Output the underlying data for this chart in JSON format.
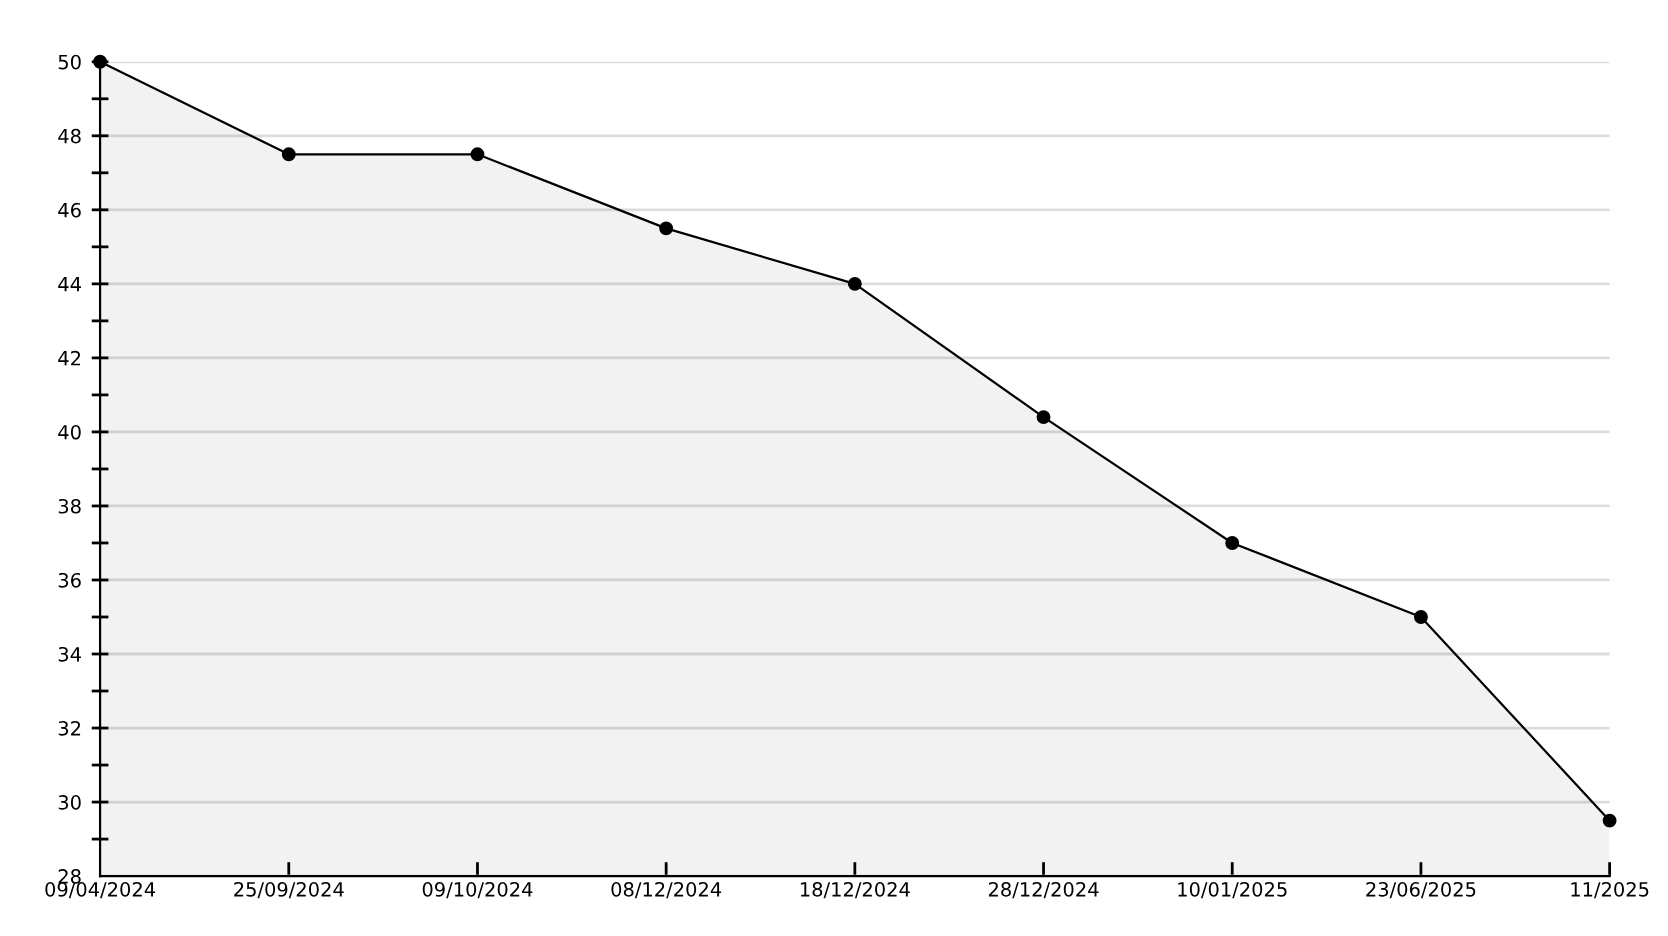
{
  "chart_data": {
    "type": "area",
    "categories": [
      "09/04/2024",
      "25/09/2024",
      "09/10/2024",
      "08/12/2024",
      "18/12/2024",
      "28/12/2024",
      "10/01/2025",
      "23/06/2025",
      "11/2025"
    ],
    "series": [
      {
        "color": "#000000",
        "values": [
          50,
          47.5,
          47.5,
          45.5,
          44.0,
          40.4,
          37.0,
          35.0,
          29.5
        ]
      }
    ],
    "ylim": [
      28,
      50
    ],
    "yticks": [
      28,
      {
        "value": 29,
        "label": null
      },
      30,
      {
        "value": 31,
        "label": null
      },
      32,
      {
        "value": 33,
        "label": null
      },
      34,
      {
        "value": 35,
        "label": null
      },
      36,
      {
        "value": 37,
        "label": null
      },
      38,
      {
        "value": 39,
        "label": null
      },
      40,
      {
        "value": 41,
        "label": null
      },
      42,
      {
        "value": 43,
        "label": null
      },
      44,
      {
        "value": 45,
        "label": null
      },
      46,
      {
        "value": 47,
        "label": null
      },
      48,
      {
        "value": 49,
        "label": null
      },
      50
    ],
    "grid": "y",
    "marker": "circle",
    "line_style": "solid"
  }
}
